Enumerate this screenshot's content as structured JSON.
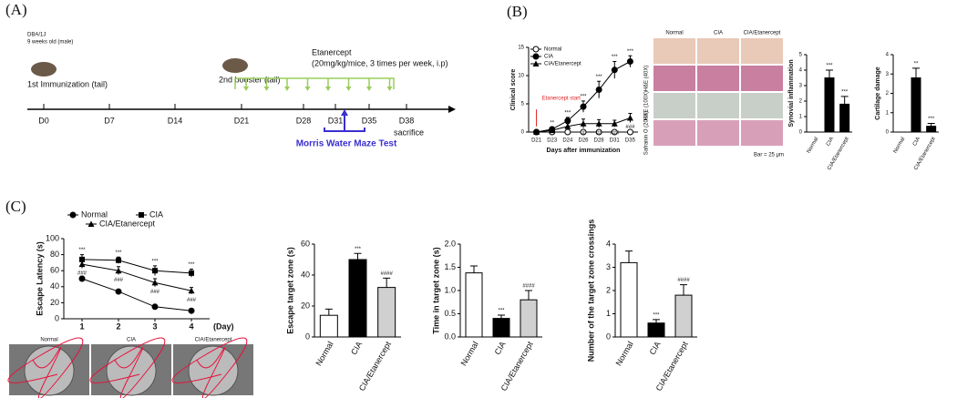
{
  "panels": [
    "(A)",
    "(B)",
    "(C)"
  ],
  "timeline": {
    "strain": "DBA/1J",
    "age": "9 weeks old (male)",
    "immunization": "1st Immunization (tail)",
    "booster": "2nd booster (tail)",
    "treatment": "Etanercept",
    "dose": "(20mg/kg/mice, 3 times per week, i.p)",
    "days": [
      "D0",
      "D7",
      "D14",
      "D21",
      "D28",
      "D31",
      "D35",
      "D38"
    ],
    "end": "sacrifice",
    "test": "Morris Water Maze Test"
  },
  "histology": {
    "columns": [
      "Normal",
      "CIA",
      "CIA/Etanercept"
    ],
    "rows": [
      "H&E (40X)",
      "H&E (100X)",
      "Safranin O (200X)"
    ],
    "scale": "Bar = 25 μm"
  },
  "maze": [
    "Normal",
    "CIA",
    "CIA/Etanercept"
  ],
  "chart_data": [
    {
      "type": "line",
      "ylabel": "Clinical score",
      "xlabel": "Days after immunization",
      "annotation": "Etanercept start",
      "legend": "top-left",
      "categories": [
        "D21",
        "D23",
        "D24",
        "D26",
        "D28",
        "D31",
        "D35"
      ],
      "ylim": [
        0,
        15
      ],
      "yticks": [
        0,
        5,
        10,
        15
      ],
      "series": [
        {
          "name": "Normal",
          "color": "#000000",
          "marker": "open-circle",
          "values": [
            0,
            0,
            0,
            0,
            0,
            0,
            0
          ]
        },
        {
          "name": "CIA",
          "color": "#000000",
          "marker": "circle",
          "values": [
            0,
            0.5,
            2,
            4.5,
            7.5,
            11,
            12.5
          ],
          "errors": [
            0,
            0.3,
            0.6,
            1,
            1.5,
            1.5,
            1
          ],
          "annotations": [
            null,
            "**",
            "***",
            "***",
            "***",
            "***",
            "***"
          ]
        },
        {
          "name": "CIA/Etanercept",
          "color": "#000000",
          "marker": "triangle",
          "values": [
            0,
            0.3,
            1,
            1.5,
            1.5,
            1.5,
            2.5
          ],
          "errors": [
            0,
            0.2,
            0.5,
            0.8,
            0.7,
            0.6,
            0.8
          ],
          "annotations": [
            null,
            null,
            null,
            "#",
            "##",
            "###",
            "###"
          ]
        }
      ]
    },
    {
      "type": "bar",
      "ylabel": "Synovial inflammation",
      "categories": [
        "Normal",
        "CIA",
        "CIA/Etanercept"
      ],
      "values": [
        0,
        3.5,
        1.8
      ],
      "errors": [
        0,
        0.5,
        0.5
      ],
      "annotations": [
        null,
        "***",
        "***"
      ],
      "colors": [
        "#000000",
        "#000000",
        "#000000"
      ],
      "ylim": [
        0,
        5
      ],
      "yticks": [
        0,
        1,
        2,
        3,
        4,
        5
      ]
    },
    {
      "type": "bar",
      "ylabel": "Cartilage damage",
      "categories": [
        "Normal",
        "CIA",
        "CIA/Etanercept"
      ],
      "values": [
        0,
        2.8,
        0.3
      ],
      "errors": [
        0,
        0.5,
        0.15
      ],
      "annotations": [
        null,
        "**",
        "***"
      ],
      "colors": [
        "#000000",
        "#000000",
        "#000000"
      ],
      "ylim": [
        0,
        4
      ],
      "yticks": [
        0,
        1,
        2,
        3,
        4
      ]
    },
    {
      "type": "line",
      "ylabel": "Escape Latency (s)",
      "xlabel": "(Day)",
      "legend": "top",
      "categories": [
        "1",
        "2",
        "3",
        "4"
      ],
      "ylim": [
        0,
        100
      ],
      "yticks": [
        0,
        20,
        40,
        60,
        80,
        100
      ],
      "series": [
        {
          "name": "Normal",
          "color": "#000000",
          "marker": "circle",
          "values": [
            50,
            34,
            15,
            10
          ],
          "errors": [
            3,
            3,
            2,
            2
          ]
        },
        {
          "name": "CIA",
          "color": "#000000",
          "marker": "square",
          "values": [
            74,
            73,
            60,
            57
          ],
          "errors": [
            6,
            4,
            6,
            5
          ],
          "annotations": [
            "***",
            "***",
            "***",
            "***"
          ]
        },
        {
          "name": "CIA/Etanercept",
          "color": "#000000",
          "marker": "triangle",
          "values": [
            68,
            60,
            45,
            35
          ],
          "errors": [
            5,
            5,
            5,
            4
          ],
          "annotations": [
            "###",
            "###",
            "###",
            "###"
          ]
        }
      ]
    },
    {
      "type": "bar",
      "ylabel": "Escape target zone (s)",
      "categories": [
        "Normal",
        "CIA",
        "CIA/Etanercept"
      ],
      "values": [
        14,
        50,
        32
      ],
      "errors": [
        4,
        4,
        6
      ],
      "annotations": [
        null,
        "***",
        "####"
      ],
      "colors": [
        "#ffffff",
        "#000000",
        "#d0d0d0"
      ],
      "ylim": [
        0,
        60
      ],
      "yticks": [
        0,
        20,
        40,
        60
      ]
    },
    {
      "type": "bar",
      "ylabel": "Time in target zone (s)",
      "categories": [
        "Normal",
        "CIA",
        "CIA/Etanercept"
      ],
      "values": [
        1.38,
        0.4,
        0.8
      ],
      "errors": [
        0.15,
        0.07,
        0.2
      ],
      "annotations": [
        null,
        "***",
        "####"
      ],
      "colors": [
        "#ffffff",
        "#000000",
        "#d0d0d0"
      ],
      "ylim": [
        0,
        2
      ],
      "yticks": [
        {
          "value": 0,
          "label": "0.0"
        },
        0.5,
        {
          "value": 1,
          "label": "1.0"
        },
        1.5,
        {
          "value": 2,
          "label": "2.0"
        }
      ]
    },
    {
      "type": "bar",
      "ylabel": "Number of the target zone crossings",
      "categories": [
        "Normal",
        "CIA",
        "CIA/Etanercept"
      ],
      "values": [
        3.2,
        0.6,
        1.8
      ],
      "errors": [
        0.5,
        0.15,
        0.45
      ],
      "annotations": [
        null,
        "***",
        "####"
      ],
      "colors": [
        "#ffffff",
        "#000000",
        "#d0d0d0"
      ],
      "ylim": [
        0,
        4
      ],
      "yticks": [
        0,
        1,
        2,
        3,
        4
      ]
    }
  ]
}
